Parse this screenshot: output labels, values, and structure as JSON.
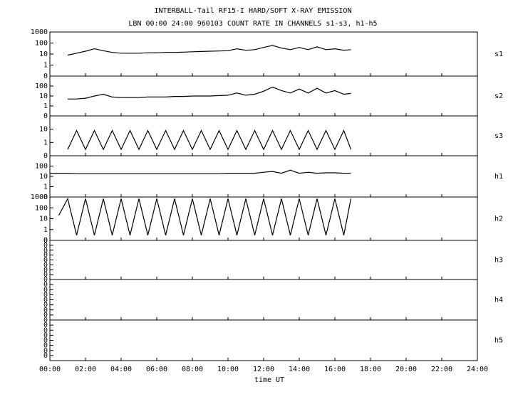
{
  "chart_data": {
    "type": "line",
    "title": "INTERBALL-Tail RF15-I HARD/SOFT X-RAY EMISSION",
    "subtitle": "LBN 00:00 24:00 960103  COUNT RATE IN CHANNELS s1-s3, h1-h5",
    "x_label": "time UT",
    "xlim": [
      0,
      24
    ],
    "xticks": [
      {
        "value": 0,
        "label": "00:00"
      },
      {
        "value": 2,
        "label": "02:00"
      },
      {
        "value": 4,
        "label": "04:00"
      },
      {
        "value": 6,
        "label": "06:00"
      },
      {
        "value": 8,
        "label": "08:00"
      },
      {
        "value": 10,
        "label": "10:00"
      },
      {
        "value": 12,
        "label": "12:00"
      },
      {
        "value": 14,
        "label": "14:00"
      },
      {
        "value": 16,
        "label": "16:00"
      },
      {
        "value": 18,
        "label": "18:00"
      },
      {
        "value": 20,
        "label": "20:00"
      },
      {
        "value": 22,
        "label": "22:00"
      },
      {
        "value": 24,
        "label": "24:00"
      }
    ],
    "x": [
      0,
      0.5,
      1,
      1.5,
      2,
      2.5,
      3,
      3.5,
      4,
      4.5,
      5,
      5.5,
      6,
      6.5,
      7,
      7.5,
      8,
      8.5,
      9,
      9.5,
      10,
      10.5,
      11,
      11.5,
      12,
      12.5,
      13,
      13.5,
      14,
      14.5,
      15,
      15.5,
      16,
      16.5,
      16.9
    ],
    "panels": [
      {
        "name": "s1",
        "log": true,
        "ylim": [
          0.1,
          1000
        ],
        "yticks": [
          1000,
          100,
          10,
          1,
          {
            "value": 0.1,
            "label": "0"
          }
        ],
        "color": "#000000",
        "values": [
          null,
          null,
          8,
          12,
          18,
          30,
          20,
          14,
          12,
          12,
          12,
          13,
          13,
          14,
          14,
          15,
          16,
          17,
          18,
          19,
          20,
          30,
          22,
          25,
          40,
          60,
          35,
          25,
          40,
          25,
          45,
          25,
          30,
          22,
          25
        ]
      },
      {
        "name": "s2",
        "log": true,
        "ylim": [
          0.1,
          1000
        ],
        "yticks": [
          100,
          10,
          1,
          {
            "value": 0.1,
            "label": "0"
          }
        ],
        "color": "#000000",
        "values": [
          null,
          null,
          5,
          5,
          6,
          10,
          15,
          8,
          7,
          7,
          7,
          8,
          8,
          8,
          9,
          9,
          10,
          10,
          10,
          11,
          12,
          20,
          12,
          15,
          30,
          80,
          35,
          20,
          50,
          20,
          60,
          20,
          35,
          15,
          18
        ]
      },
      {
        "name": "s3",
        "log": true,
        "ylim": [
          0.1,
          100
        ],
        "yticks": [
          10,
          1,
          {
            "value": 0.1,
            "label": "0"
          }
        ],
        "color": "#000000",
        "values": [
          null,
          null,
          0.3,
          8,
          0.3,
          8,
          0.3,
          8,
          0.3,
          8,
          0.3,
          8,
          0.3,
          8,
          0.3,
          8,
          0.3,
          8,
          0.3,
          8,
          0.3,
          8,
          0.3,
          8,
          0.3,
          8,
          0.3,
          8,
          0.3,
          8,
          0.3,
          8,
          0.3,
          8,
          0.3
        ]
      },
      {
        "name": "h1",
        "log": true,
        "ylim": [
          0.1,
          1000
        ],
        "yticks": [
          100,
          10,
          1,
          {
            "value": 0.1,
            "label": "0"
          }
        ],
        "color": "#000000",
        "values": [
          20,
          20,
          20,
          18,
          18,
          18,
          18,
          18,
          18,
          18,
          18,
          18,
          18,
          18,
          18,
          18,
          18,
          18,
          18,
          18,
          20,
          20,
          20,
          20,
          25,
          30,
          20,
          40,
          20,
          25,
          20,
          22,
          22,
          20,
          20
        ]
      },
      {
        "name": "h2",
        "log": true,
        "ylim": [
          0.1,
          1000
        ],
        "yticks": [
          1000,
          100,
          10,
          1,
          {
            "value": 0.1,
            "label": "0"
          }
        ],
        "color": "#000000",
        "values": [
          null,
          20,
          700,
          0.3,
          700,
          0.3,
          700,
          0.3,
          700,
          0.3,
          700,
          0.3,
          700,
          0.3,
          700,
          0.3,
          700,
          0.3,
          700,
          0.3,
          700,
          0.3,
          700,
          0.3,
          700,
          0.3,
          700,
          0.3,
          700,
          0.3,
          700,
          0.3,
          700,
          0.3,
          700
        ]
      },
      {
        "name": "h3",
        "log": false,
        "ylim": [
          0,
          8
        ],
        "yticks": [
          {
            "value": 8,
            "label": "0"
          },
          {
            "value": 7,
            "label": "0"
          },
          {
            "value": 6,
            "label": "0"
          },
          {
            "value": 5,
            "label": "0"
          },
          {
            "value": 4,
            "label": "0"
          },
          {
            "value": 3,
            "label": "0"
          },
          {
            "value": 2,
            "label": "0"
          },
          {
            "value": 1,
            "label": "0"
          }
        ]
      },
      {
        "name": "h4",
        "log": false,
        "ylim": [
          0,
          8
        ],
        "yticks": [
          {
            "value": 8,
            "label": "0"
          },
          {
            "value": 7,
            "label": "0"
          },
          {
            "value": 6,
            "label": "0"
          },
          {
            "value": 5,
            "label": "0"
          },
          {
            "value": 4,
            "label": "0"
          },
          {
            "value": 3,
            "label": "0"
          },
          {
            "value": 2,
            "label": "0"
          },
          {
            "value": 1,
            "label": "0"
          }
        ]
      },
      {
        "name": "h5",
        "log": false,
        "ylim": [
          0,
          8
        ],
        "yticks": [
          {
            "value": 8,
            "label": "0"
          },
          {
            "value": 7,
            "label": "0"
          },
          {
            "value": 6,
            "label": "0"
          },
          {
            "value": 5,
            "label": "0"
          },
          {
            "value": 4,
            "label": "0"
          },
          {
            "value": 3,
            "label": "0"
          },
          {
            "value": 2,
            "label": "0"
          },
          {
            "value": 1,
            "label": "0"
          }
        ]
      }
    ]
  }
}
